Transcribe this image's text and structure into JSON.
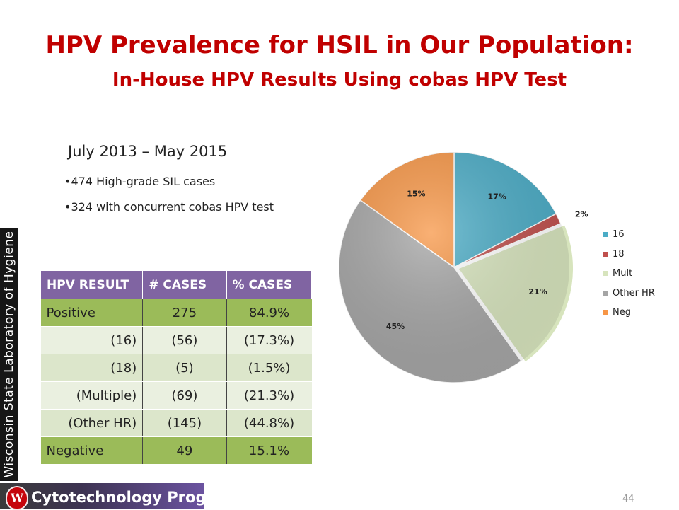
{
  "slide": {
    "title": "HPV Prevalence for HSIL in Our Population:",
    "subtitle": "In-House HPV Results Using cobas HPV Test",
    "date_range": "July 2013 – May 2015",
    "bullets": [
      "•474 High-grade SIL cases",
      "•324 with concurrent cobas HPV test"
    ],
    "sidebar_text": "Wisconsin State Laboratory of Hygiene",
    "footer_text": "Cytotechnology Program",
    "logo_letter": "W",
    "page_number": "44"
  },
  "table": {
    "headers": [
      "HPV RESULT",
      "# CASES",
      "% CASES"
    ],
    "rows": [
      [
        "Positive",
        "275",
        "84.9%"
      ],
      [
        "(16)",
        "(56)",
        "(17.3%)"
      ],
      [
        "(18)",
        "(5)",
        "(1.5%)"
      ],
      [
        "(Multiple)",
        "(69)",
        "(21.3%)"
      ],
      [
        "(Other HR)",
        "(145)",
        "(44.8%)"
      ],
      [
        "Negative",
        "49",
        "15.1%"
      ]
    ]
  },
  "chart_data": {
    "type": "pie",
    "title": "",
    "categories": [
      "16",
      "18",
      "Mult",
      "Other HR",
      "Neg"
    ],
    "values": [
      17.3,
      1.5,
      21.3,
      44.8,
      15.1
    ],
    "data_labels": [
      "17%",
      "2%",
      "21%",
      "45%",
      "15%"
    ],
    "colors": [
      "#4bacc6",
      "#c0504d",
      "#d7e4bd",
      "#a5a5a5",
      "#f79646"
    ],
    "exploded_slice": "Mult",
    "legend_position": "right"
  }
}
